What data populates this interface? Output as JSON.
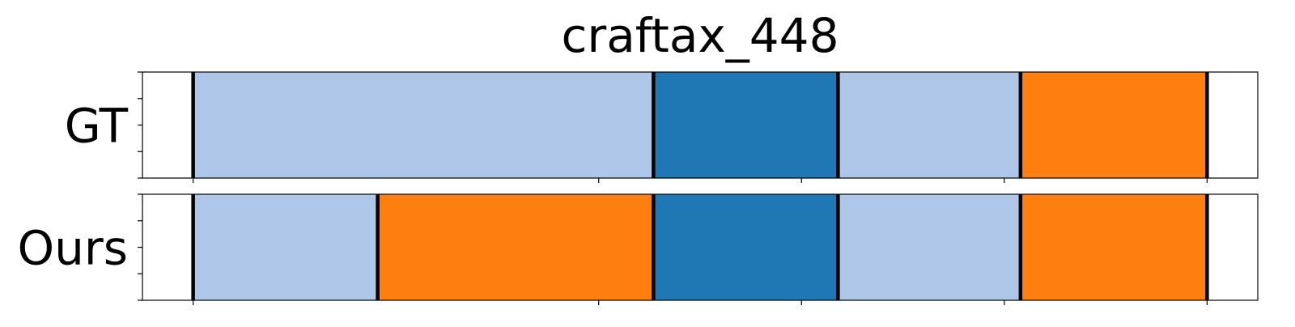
{
  "chart_data": {
    "type": "bar",
    "title": "craftax_448",
    "xlim": [
      0,
      55
    ],
    "rows": [
      {
        "label": "GT",
        "segments": [
          {
            "start": 2.5,
            "end": 25.2,
            "color": "#aec7e8"
          },
          {
            "start": 25.2,
            "end": 34.3,
            "color": "#1f77b4"
          },
          {
            "start": 34.3,
            "end": 43.3,
            "color": "#aec7e8"
          },
          {
            "start": 43.3,
            "end": 52.5,
            "color": "#ff7f0e"
          }
        ],
        "boundaries": [
          2.5,
          25.2,
          34.3,
          43.3,
          52.5
        ]
      },
      {
        "label": "Ours",
        "segments": [
          {
            "start": 2.5,
            "end": 11.6,
            "color": "#aec7e8"
          },
          {
            "start": 11.6,
            "end": 25.2,
            "color": "#ff7f0e"
          },
          {
            "start": 25.2,
            "end": 34.3,
            "color": "#1f77b4"
          },
          {
            "start": 34.3,
            "end": 43.3,
            "color": "#aec7e8"
          },
          {
            "start": 43.3,
            "end": 52.5,
            "color": "#ff7f0e"
          }
        ],
        "boundaries": [
          2.5,
          11.6,
          25.2,
          34.3,
          43.3,
          52.5
        ]
      }
    ],
    "xticks": [
      2.5,
      22.5,
      32.5,
      42.5,
      52.5
    ],
    "yticks_per_row": 5,
    "grid": false,
    "legend": "none"
  }
}
